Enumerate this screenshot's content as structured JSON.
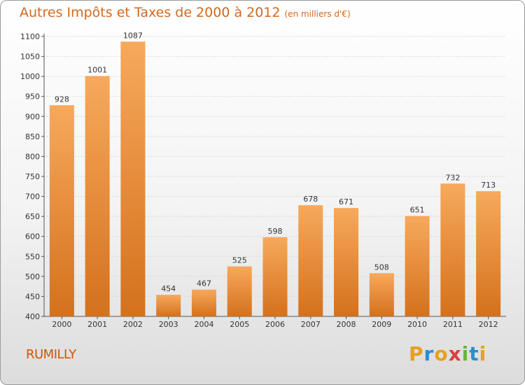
{
  "title": "Autres Impôts et Taxes de 2000 à 2012",
  "subtitle": "(en milliers d'€)",
  "location": "RUMILLY",
  "logo": {
    "letters": [
      "P",
      "r",
      "o",
      "x",
      "i",
      "t",
      "i"
    ],
    "colors": [
      "#e8a020",
      "#2a8fd0",
      "#e8a020",
      "#d94040",
      "#6ab53a",
      "#2a8fd0",
      "#e8a020"
    ]
  },
  "colors": {
    "bar_top": "#f7a95c",
    "bar_bottom": "#d4711c",
    "title": "#d2691e"
  },
  "chart_data": {
    "type": "bar",
    "categories": [
      "2000",
      "2001",
      "2002",
      "2003",
      "2004",
      "2005",
      "2006",
      "2007",
      "2008",
      "2009",
      "2010",
      "2011",
      "2012"
    ],
    "values": [
      928,
      1001,
      1087,
      454,
      467,
      525,
      598,
      678,
      671,
      508,
      651,
      732,
      713
    ],
    "ylim": [
      400,
      1100
    ],
    "yticks": [
      400,
      450,
      500,
      550,
      600,
      650,
      700,
      750,
      800,
      850,
      900,
      950,
      1000,
      1050,
      1100
    ],
    "grid": true,
    "title": "Autres Impôts et Taxes de 2000 à 2012",
    "subtitle": "(en milliers d'€)",
    "xlabel": "",
    "ylabel": ""
  }
}
